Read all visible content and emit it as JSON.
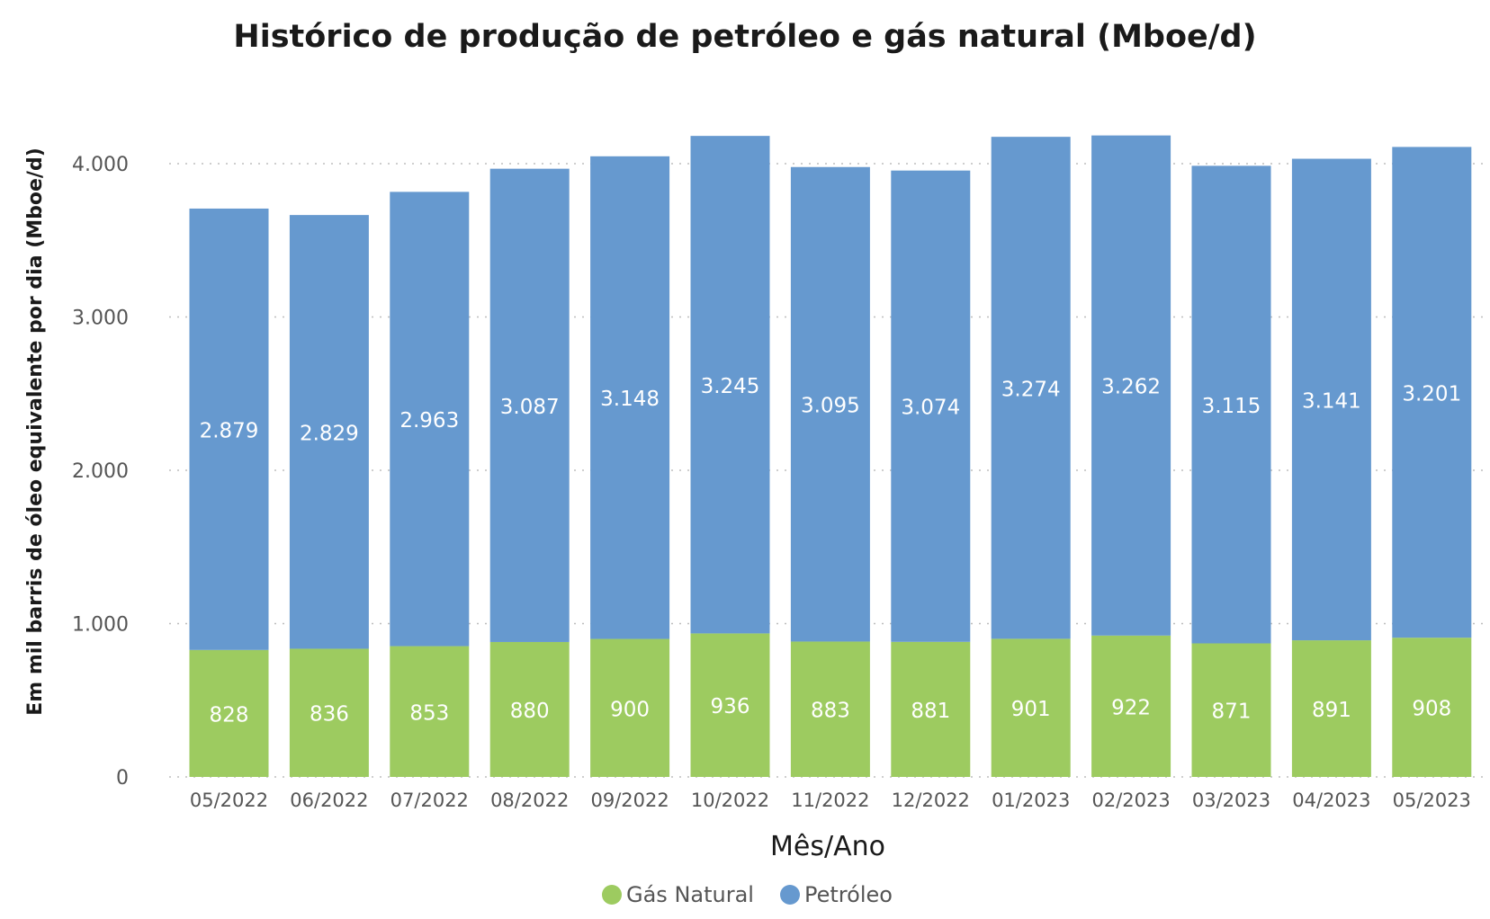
{
  "chart_data": {
    "type": "bar",
    "stacked": true,
    "title": "Histórico de produção de petróleo e gás natural (Mboe/d)",
    "xlabel": "Mês/Ano",
    "ylabel": "Em mil barris de óleo equivalente por dia (Mboe/d)",
    "ylim": [
      0,
      4400
    ],
    "yticks": [
      0,
      1000,
      2000,
      3000,
      4000
    ],
    "ytick_labels": [
      "0",
      "1.000",
      "2.000",
      "3.000",
      "4.000"
    ],
    "grid": true,
    "legend_position": "bottom-center",
    "categories": [
      "05/2022",
      "06/2022",
      "07/2022",
      "08/2022",
      "09/2022",
      "10/2022",
      "11/2022",
      "12/2022",
      "01/2023",
      "02/2023",
      "03/2023",
      "04/2023",
      "05/2023"
    ],
    "series": [
      {
        "name": "Gás Natural",
        "color": "#9dcb60",
        "values": [
          828,
          836,
          853,
          880,
          900,
          936,
          883,
          881,
          901,
          922,
          871,
          891,
          908
        ],
        "labels": [
          "828",
          "836",
          "853",
          "880",
          "900",
          "936",
          "883",
          "881",
          "901",
          "922",
          "871",
          "891",
          "908"
        ]
      },
      {
        "name": "Petróleo",
        "color": "#6699cf",
        "values": [
          2879,
          2829,
          2963,
          3087,
          3148,
          3245,
          3095,
          3074,
          3274,
          3262,
          3115,
          3141,
          3201
        ],
        "labels": [
          "2.879",
          "2.829",
          "2.963",
          "3.087",
          "3.148",
          "3.245",
          "3.095",
          "3.074",
          "3.274",
          "3.262",
          "3.115",
          "3.141",
          "3.201"
        ]
      }
    ]
  }
}
